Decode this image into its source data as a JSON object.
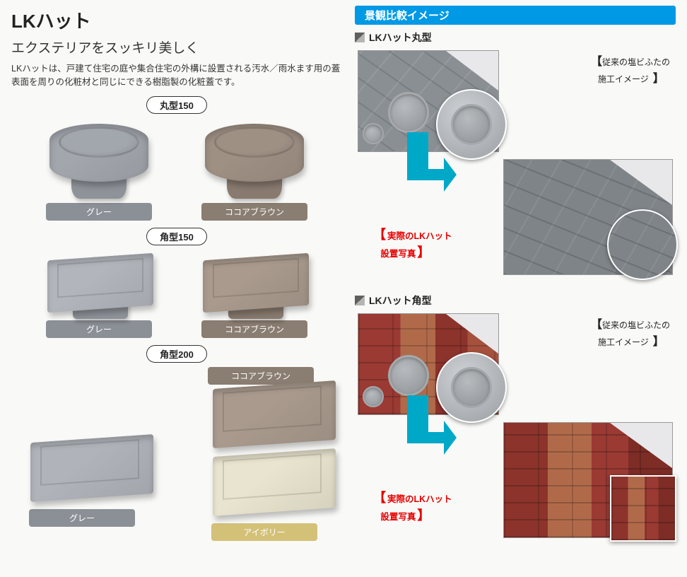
{
  "title": "LKハット",
  "subtitle": "エクステリアをスッキリ美しく",
  "description": "LKハットは、戸建て住宅の庭や集合住宅の外構に設置される汚水／雨水ます用の蓋表面を周りの化粧材と同じにできる樹脂製の化粧蓋です。",
  "types": {
    "round150": {
      "tag": "丸型150",
      "items": [
        {
          "label": "グレー",
          "pill_bg": "#8b8f96",
          "body_bg": "#a2a6ad",
          "base_bg": "#8e9299"
        },
        {
          "label": "ココアブラウン",
          "pill_bg": "#8a7d71",
          "body_bg": "#9f9084",
          "base_bg": "#887a6e"
        }
      ]
    },
    "square150": {
      "tag": "角型150",
      "items": [
        {
          "label": "グレー",
          "pill_bg": "#8b8f96",
          "body_bg": "#b2b6bc",
          "base_bg": "#8e9299"
        },
        {
          "label": "ココアブラウン",
          "pill_bg": "#8a7d71",
          "body_bg": "#a99a8d",
          "base_bg": "#887a6e"
        }
      ]
    },
    "square200": {
      "tag": "角型200",
      "items": [
        {
          "label": "グレー",
          "pill_bg": "#8b8f96",
          "body_bg": "#b0b4ba"
        },
        {
          "label": "ココアブラウン",
          "pill_bg": "#8a7d71",
          "body_bg": "#a99a8d",
          "pill_top": true
        },
        {
          "label": "アイボリー",
          "pill_bg": "#d4c178",
          "body_bg": "#e9e4cf"
        }
      ]
    }
  },
  "right": {
    "banner": "景観比較イメージ",
    "sections": [
      {
        "head": "LKハット丸型",
        "caption_before": "従来の塩ビふたの\n施工イメージ",
        "caption_after_l1": "実際のLKハット",
        "caption_after_l2": "設置写真",
        "pattern_before": "stone",
        "pattern_after": "stone2",
        "inset_shape": "circle",
        "arrow_color": "#00a8c8"
      },
      {
        "head": "LKハット角型",
        "caption_before": "従来の塩ビふたの\n施工イメージ",
        "caption_after_l1": "実際のLKハット",
        "caption_after_l2": "設置写真",
        "pattern_before": "brick",
        "pattern_after": "brick2",
        "inset_shape": "square",
        "arrow_color": "#00a8c8"
      }
    ]
  }
}
